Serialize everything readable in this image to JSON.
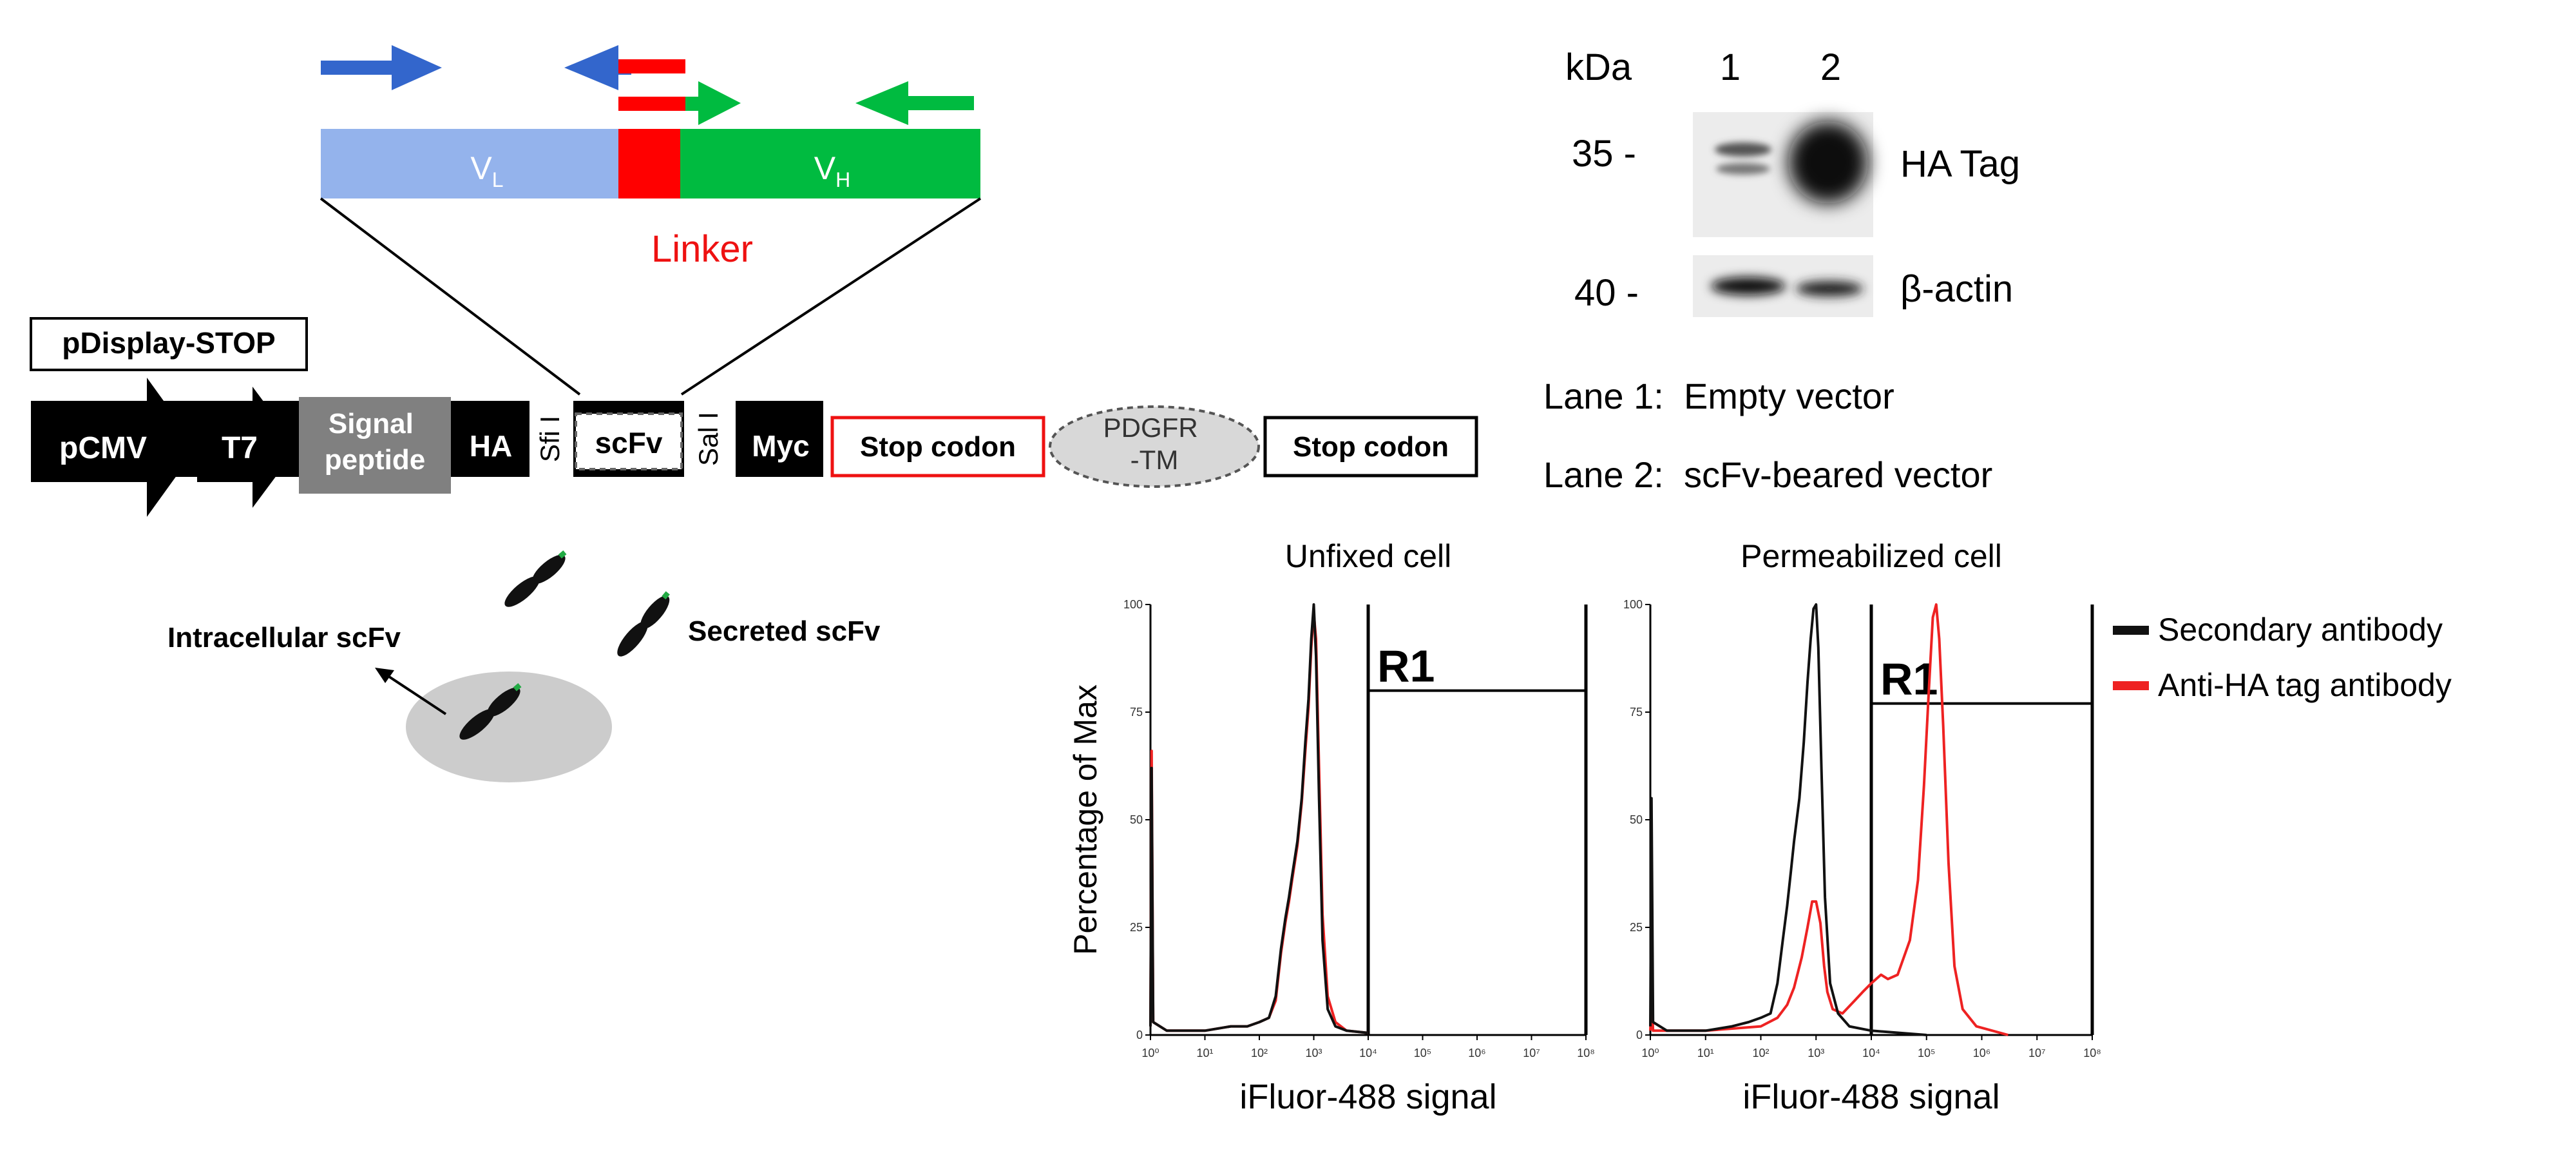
{
  "colors": {
    "vl": "#94b3ec",
    "vh": "#00bb40",
    "linker": "#ff0000",
    "primer_blue": "#3366cc",
    "primer_green": "#00bb40",
    "black": "#000000",
    "gray_block": "#808080",
    "cell": "#cccccc",
    "trace_black": "#111111",
    "trace_red": "#ee2222"
  },
  "construct": {
    "vl_main": "V",
    "vl_sub": "L",
    "vh_main": "V",
    "vh_sub": "H",
    "linker_label": "Linker",
    "vector_name": "pDisplay-STOP",
    "elements": {
      "pcmv": "pCMV",
      "t7": "T7",
      "signal_line1": "Signal",
      "signal_line2": "peptide",
      "ha": "HA",
      "sfi": "Sfi I",
      "scfv": "scFv",
      "sal": "Sal I",
      "myc": "Myc",
      "stop1": "Stop codon",
      "pdgfr_line1": "PDGFR",
      "pdgfr_line2": "-TM",
      "stop2": "Stop codon"
    }
  },
  "cell_diagram": {
    "intracellular": "Intracellular scFv",
    "secreted": "Secreted scFv"
  },
  "western": {
    "kda_label": "kDa",
    "lanes": [
      "1",
      "2"
    ],
    "markers": [
      "35 -",
      "40 -"
    ],
    "bands": [
      "HA Tag",
      "β-actin"
    ],
    "legend": [
      "Lane 1:  Empty vector",
      "Lane 2:  scFv-beared vector"
    ]
  },
  "chart_data": [
    {
      "type": "line",
      "title": "Unfixed cell",
      "xlabel": "iFluor-488 signal",
      "ylabel": "Percentage of Max",
      "x_scale": "log",
      "xlim": [
        1,
        100000000
      ],
      "ylim": [
        0,
        100
      ],
      "x_tick_labels": [
        "10⁰",
        "10¹",
        "10²",
        "10³",
        "10⁴",
        "10⁵",
        "10⁶",
        "10⁷",
        "10⁸"
      ],
      "y_tick_labels": [
        "0",
        "25",
        "50",
        "75",
        "100"
      ],
      "gate": {
        "label": "R1",
        "x_start": 10000,
        "level": 80
      },
      "series": [
        {
          "name": "Secondary antibody",
          "color": "#111111",
          "points": [
            [
              1,
              2
            ],
            [
              1.05,
              62
            ],
            [
              1.12,
              3
            ],
            [
              2,
              1
            ],
            [
              10,
              1
            ],
            [
              30,
              2
            ],
            [
              60,
              2
            ],
            [
              100,
              3
            ],
            [
              150,
              4
            ],
            [
              200,
              9
            ],
            [
              250,
              20
            ],
            [
              300,
              27
            ],
            [
              350,
              32
            ],
            [
              400,
              37
            ],
            [
              500,
              45
            ],
            [
              600,
              55
            ],
            [
              700,
              68
            ],
            [
              800,
              78
            ],
            [
              900,
              92
            ],
            [
              1000,
              100
            ],
            [
              1100,
              88
            ],
            [
              1250,
              55
            ],
            [
              1450,
              22
            ],
            [
              1800,
              6
            ],
            [
              2500,
              2
            ],
            [
              4000,
              1
            ],
            [
              10000,
              0.5
            ]
          ]
        },
        {
          "name": "Anti-HA tag antibody",
          "color": "#ee2222",
          "points": [
            [
              1,
              2
            ],
            [
              1.05,
              66
            ],
            [
              1.12,
              3
            ],
            [
              2,
              1
            ],
            [
              10,
              1
            ],
            [
              30,
              2
            ],
            [
              60,
              2
            ],
            [
              100,
              3
            ],
            [
              150,
              4
            ],
            [
              200,
              8
            ],
            [
              250,
              19
            ],
            [
              300,
              26
            ],
            [
              350,
              31
            ],
            [
              400,
              36
            ],
            [
              500,
              44
            ],
            [
              600,
              54
            ],
            [
              700,
              66
            ],
            [
              800,
              76
            ],
            [
              900,
              90
            ],
            [
              1000,
              98
            ],
            [
              1100,
              92
            ],
            [
              1250,
              62
            ],
            [
              1450,
              28
            ],
            [
              1800,
              9
            ],
            [
              2500,
              3
            ],
            [
              4000,
              1
            ],
            [
              10000,
              0.5
            ]
          ]
        }
      ]
    },
    {
      "type": "line",
      "title": "Permeabilized cell",
      "xlabel": "iFluor-488 signal",
      "x_scale": "log",
      "xlim": [
        1,
        100000000
      ],
      "ylim": [
        0,
        100
      ],
      "x_tick_labels": [
        "10⁰",
        "10¹",
        "10²",
        "10³",
        "10⁴",
        "10⁵",
        "10⁶",
        "10⁷",
        "10⁸"
      ],
      "y_tick_labels": [
        "0",
        "25",
        "50",
        "75",
        "100"
      ],
      "gate": {
        "label": "R1",
        "x_start": 10000,
        "level": 77
      },
      "series": [
        {
          "name": "Secondary antibody",
          "color": "#111111",
          "points": [
            [
              1,
              2
            ],
            [
              1.05,
              55
            ],
            [
              1.12,
              3
            ],
            [
              2,
              1
            ],
            [
              10,
              1
            ],
            [
              30,
              2
            ],
            [
              60,
              3
            ],
            [
              100,
              4
            ],
            [
              150,
              5
            ],
            [
              200,
              12
            ],
            [
              250,
              22
            ],
            [
              300,
              30
            ],
            [
              350,
              38
            ],
            [
              400,
              45
            ],
            [
              500,
              55
            ],
            [
              600,
              68
            ],
            [
              700,
              82
            ],
            [
              800,
              92
            ],
            [
              900,
              99
            ],
            [
              1000,
              100
            ],
            [
              1100,
              90
            ],
            [
              1250,
              62
            ],
            [
              1450,
              32
            ],
            [
              1800,
              12
            ],
            [
              2500,
              5
            ],
            [
              4000,
              2
            ],
            [
              10000,
              1
            ],
            [
              100000,
              0
            ]
          ]
        },
        {
          "name": "Anti-HA tag antibody",
          "color": "#ee2222",
          "points": [
            [
              1,
              1
            ],
            [
              1.05,
              10
            ],
            [
              1.12,
              1
            ],
            [
              10,
              1
            ],
            [
              100,
              2
            ],
            [
              200,
              4
            ],
            [
              300,
              7
            ],
            [
              400,
              11
            ],
            [
              550,
              18
            ],
            [
              700,
              25
            ],
            [
              850,
              31
            ],
            [
              1000,
              31
            ],
            [
              1200,
              26
            ],
            [
              1400,
              16
            ],
            [
              1600,
              10
            ],
            [
              2000,
              6
            ],
            [
              3000,
              5
            ],
            [
              5000,
              8
            ],
            [
              7000,
              10
            ],
            [
              10000,
              12
            ],
            [
              15000,
              14
            ],
            [
              20000,
              13
            ],
            [
              30000,
              14
            ],
            [
              50000,
              22
            ],
            [
              70000,
              36
            ],
            [
              90000,
              58
            ],
            [
              110000,
              80
            ],
            [
              130000,
              97
            ],
            [
              150000,
              100
            ],
            [
              170000,
              92
            ],
            [
              200000,
              72
            ],
            [
              250000,
              40
            ],
            [
              320000,
              16
            ],
            [
              450000,
              6
            ],
            [
              800000,
              2
            ],
            [
              3000000,
              0
            ]
          ]
        }
      ]
    }
  ],
  "legend": [
    {
      "label": "Secondary antibody",
      "color": "#111111"
    },
    {
      "label": "Anti-HA tag antibody",
      "color": "#ee2222"
    }
  ]
}
